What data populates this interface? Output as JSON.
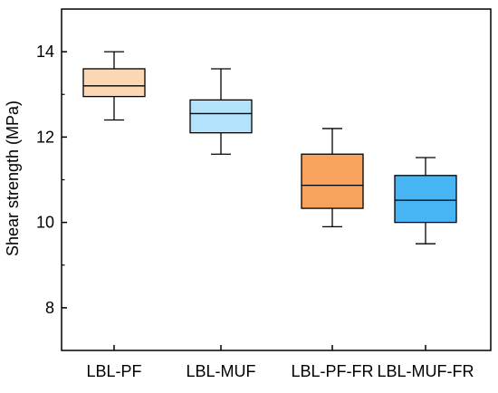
{
  "chart_data": {
    "type": "box",
    "title": "",
    "xlabel": "",
    "ylabel": "Shear strength (MPa)",
    "ylim": [
      7,
      15
    ],
    "yticks": [
      8,
      10,
      12,
      14
    ],
    "grid": false,
    "legend": "none",
    "categories": [
      "LBL-PF",
      "LBL-MUF",
      "LBL-PF-FR",
      "LBL-MUF-FR"
    ],
    "boxes": [
      {
        "name": "LBL-PF",
        "whisker_low": 12.4,
        "q1": 12.95,
        "median": 13.2,
        "q3": 13.6,
        "whisker_high": 14.0,
        "color": "#fdd7b3"
      },
      {
        "name": "LBL-MUF",
        "whisker_low": 11.6,
        "q1": 12.1,
        "median": 12.55,
        "q3": 12.87,
        "whisker_high": 13.6,
        "color": "#b3e3fb"
      },
      {
        "name": "LBL-PF-FR",
        "whisker_low": 9.9,
        "q1": 10.33,
        "median": 10.87,
        "q3": 11.6,
        "whisker_high": 12.2,
        "color": "#f7a35d"
      },
      {
        "name": "LBL-MUF-FR",
        "whisker_low": 9.5,
        "q1": 10.0,
        "median": 10.52,
        "q3": 11.1,
        "whisker_high": 11.52,
        "color": "#47b4f3"
      }
    ]
  }
}
